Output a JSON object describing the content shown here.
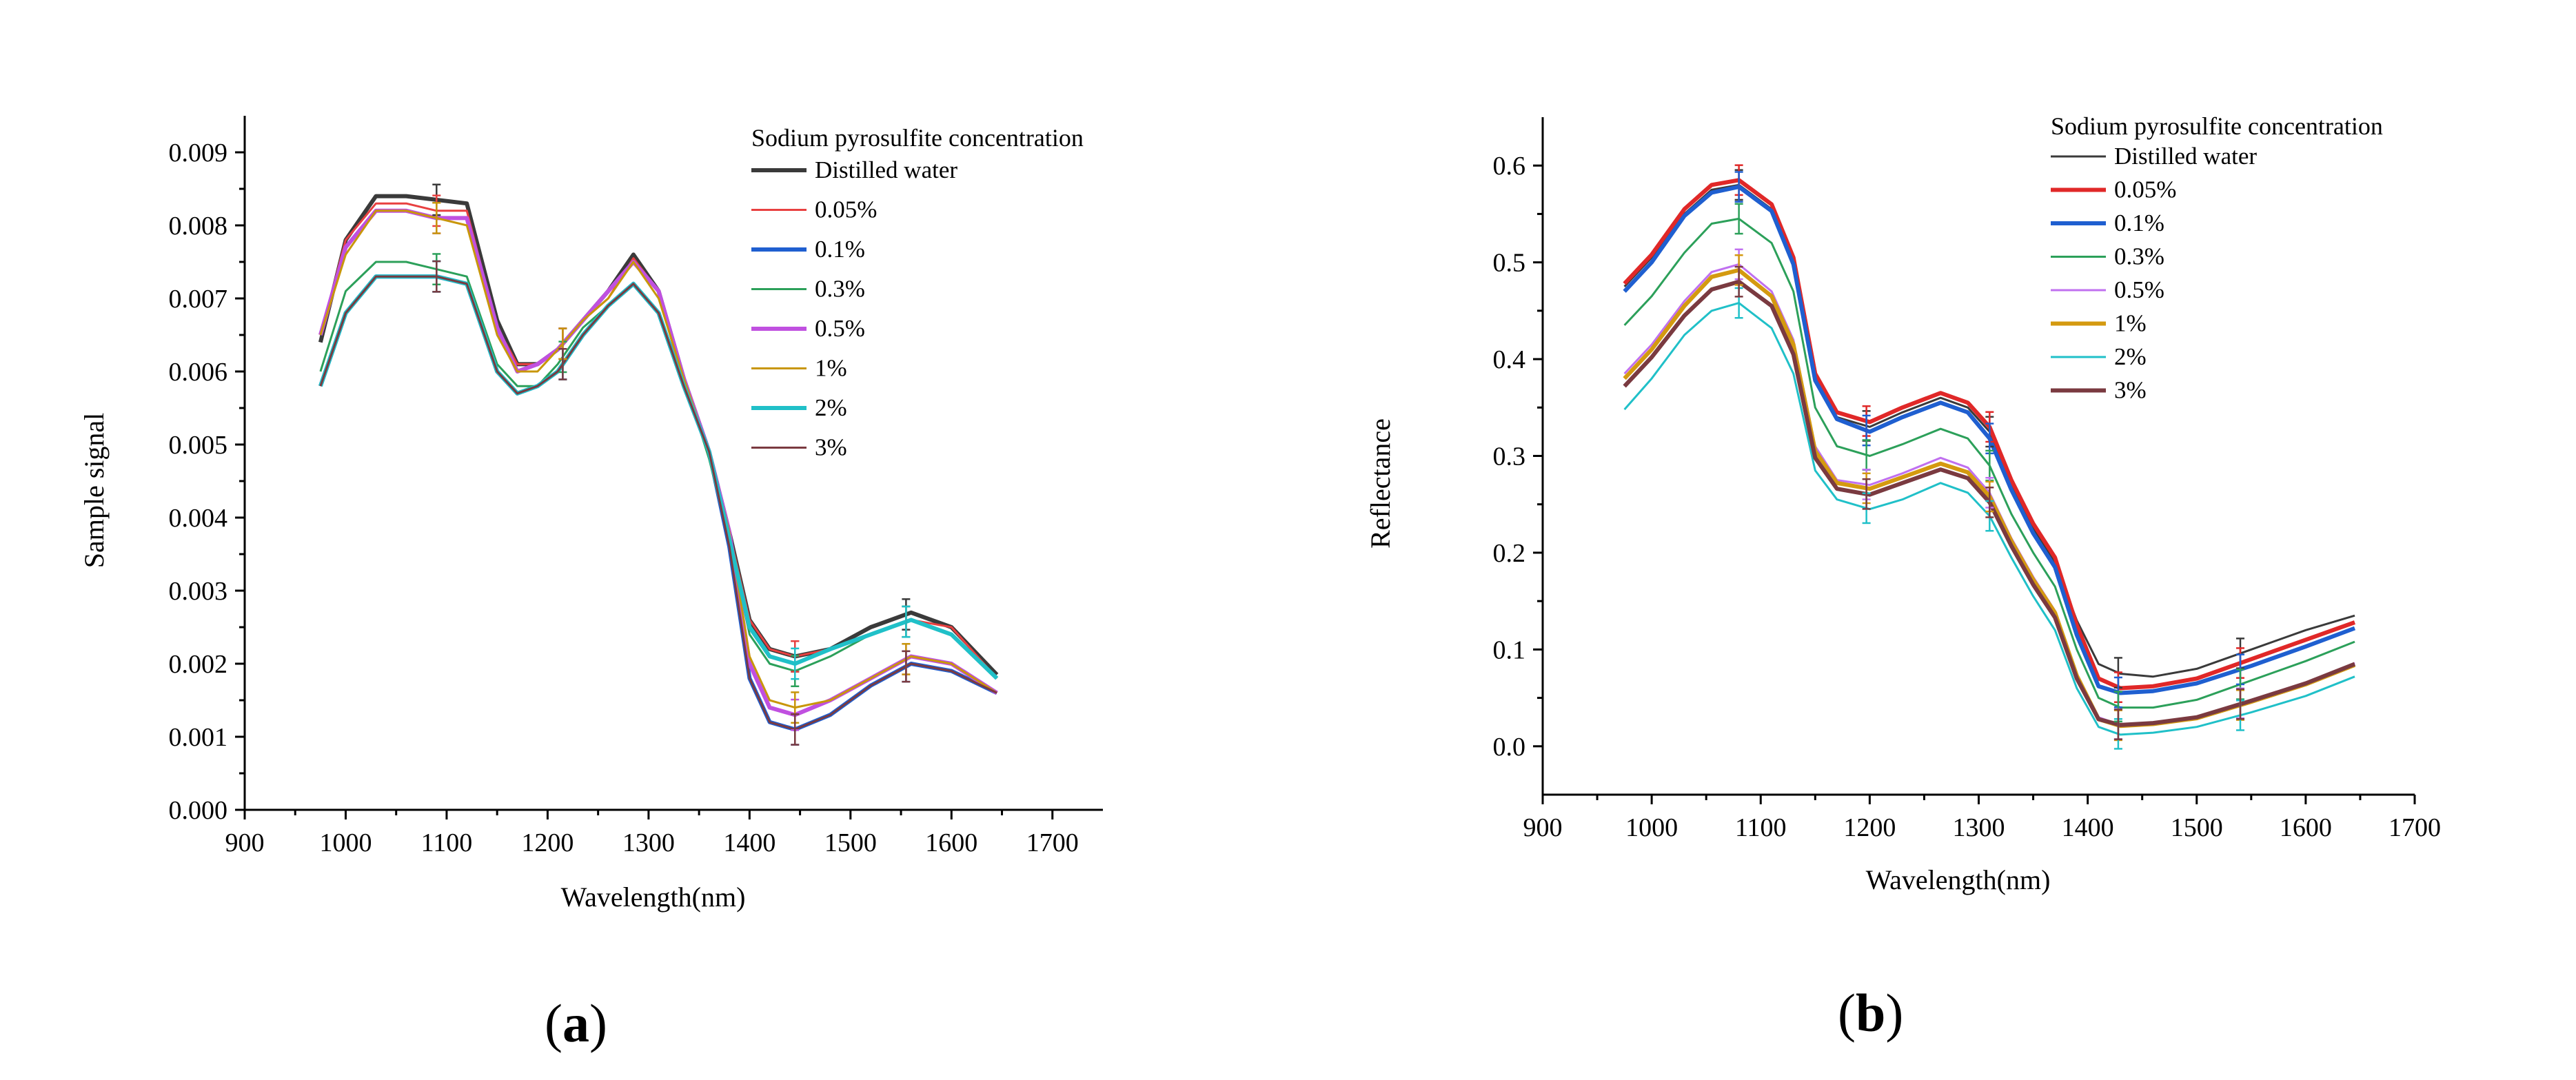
{
  "chart_data": [
    {
      "type": "line",
      "panel": "a",
      "caption_letter": "a",
      "title": "",
      "xlabel": "Wavelength(nm)",
      "ylabel": "Sample signal",
      "xlim": [
        900,
        1750
      ],
      "ylim": [
        0,
        0.0095
      ],
      "x_ticks": [
        900,
        1000,
        1100,
        1200,
        1300,
        1400,
        1500,
        1600,
        1700
      ],
      "y_ticks": [
        0.0,
        0.001,
        0.002,
        0.003,
        0.004,
        0.005,
        0.006,
        0.007,
        0.008,
        0.009
      ],
      "y_tick_labels": [
        "0.000",
        "0.001",
        "0.002",
        "0.003",
        "0.004",
        "0.005",
        "0.006",
        "0.007",
        "0.008",
        "0.009"
      ],
      "x": [
        975,
        1000,
        1030,
        1060,
        1090,
        1120,
        1150,
        1170,
        1190,
        1210,
        1235,
        1260,
        1285,
        1310,
        1335,
        1360,
        1380,
        1400,
        1420,
        1445,
        1480,
        1520,
        1560,
        1600,
        1645
      ],
      "legend_title": "Sodium pyrosulfite concentration",
      "legend_position": "top-right",
      "error_bar_x": [
        1090,
        1215,
        1445,
        1555
      ],
      "series": [
        {
          "name": "Distilled water",
          "color": "#3a3a3a",
          "width": 6,
          "values": [
            0.0064,
            0.0078,
            0.0084,
            0.0084,
            0.00835,
            0.0083,
            0.0067,
            0.0061,
            0.0061,
            0.0063,
            0.0067,
            0.0071,
            0.0076,
            0.0071,
            0.0059,
            0.0049,
            0.0038,
            0.0026,
            0.0022,
            0.0021,
            0.0022,
            0.0025,
            0.0027,
            0.0025,
            0.00185
          ]
        },
        {
          "name": "0.05%",
          "color": "#e84040",
          "width": 3,
          "values": [
            0.0065,
            0.0078,
            0.0083,
            0.0083,
            0.0082,
            0.0082,
            0.0066,
            0.0061,
            0.0061,
            0.0063,
            0.0067,
            0.007,
            0.00755,
            0.0071,
            0.0059,
            0.0049,
            0.0038,
            0.0026,
            0.0022,
            0.0021,
            0.0022,
            0.0024,
            0.0026,
            0.0025,
            0.0018
          ]
        },
        {
          "name": "0.1%",
          "color": "#1f5fd0",
          "width": 6,
          "values": [
            0.0058,
            0.0068,
            0.0073,
            0.0073,
            0.0073,
            0.0072,
            0.006,
            0.0057,
            0.0058,
            0.006,
            0.0065,
            0.0069,
            0.0072,
            0.0068,
            0.0058,
            0.0049,
            0.0036,
            0.0018,
            0.0012,
            0.0011,
            0.0013,
            0.0017,
            0.002,
            0.0019,
            0.0016
          ]
        },
        {
          "name": "0.3%",
          "color": "#2ca05a",
          "width": 3,
          "values": [
            0.006,
            0.0071,
            0.0075,
            0.0075,
            0.0074,
            0.0073,
            0.0061,
            0.0058,
            0.0058,
            0.0061,
            0.0066,
            0.0069,
            0.0072,
            0.0068,
            0.0059,
            0.0048,
            0.0037,
            0.0024,
            0.002,
            0.0019,
            0.0021,
            0.0024,
            0.0026,
            0.0024,
            0.0018
          ]
        },
        {
          "name": "0.5%",
          "color": "#c050e0",
          "width": 6,
          "values": [
            0.0065,
            0.0077,
            0.0082,
            0.0082,
            0.0081,
            0.0081,
            0.0066,
            0.006,
            0.0061,
            0.0063,
            0.0067,
            0.0071,
            0.0075,
            0.0071,
            0.0059,
            0.0049,
            0.0038,
            0.002,
            0.0014,
            0.0013,
            0.0015,
            0.0018,
            0.0021,
            0.002,
            0.0016
          ]
        },
        {
          "name": "1%",
          "color": "#c8960a",
          "width": 3,
          "values": [
            0.0065,
            0.0076,
            0.0082,
            0.0082,
            0.0081,
            0.008,
            0.0065,
            0.006,
            0.006,
            0.0063,
            0.0067,
            0.007,
            0.0075,
            0.007,
            0.0059,
            0.0049,
            0.0038,
            0.0021,
            0.0015,
            0.0014,
            0.0015,
            0.0018,
            0.0021,
            0.002,
            0.0016
          ]
        },
        {
          "name": "2%",
          "color": "#20c0c8",
          "width": 6,
          "values": [
            0.0058,
            0.0068,
            0.0073,
            0.0073,
            0.0073,
            0.0072,
            0.006,
            0.0057,
            0.0058,
            0.006,
            0.0065,
            0.0069,
            0.0072,
            0.0068,
            0.0058,
            0.0049,
            0.0037,
            0.0025,
            0.0021,
            0.002,
            0.0022,
            0.0024,
            0.0026,
            0.0024,
            0.0018
          ]
        },
        {
          "name": "3%",
          "color": "#7a3a40",
          "width": 3,
          "values": [
            0.0058,
            0.0068,
            0.0073,
            0.0073,
            0.0073,
            0.0072,
            0.006,
            0.0057,
            0.0058,
            0.006,
            0.0065,
            0.0069,
            0.0072,
            0.0068,
            0.0058,
            0.0049,
            0.0036,
            0.0018,
            0.0012,
            0.0011,
            0.0013,
            0.0017,
            0.002,
            0.0019,
            0.0016
          ]
        }
      ]
    },
    {
      "type": "line",
      "panel": "b",
      "caption_letter": "b",
      "title": "",
      "xlabel": "Wavelength(nm)",
      "ylabel": "Reflectance",
      "xlim": [
        900,
        1700
      ],
      "ylim": [
        -0.05,
        0.65
      ],
      "x_ticks": [
        900,
        1000,
        1100,
        1200,
        1300,
        1400,
        1500,
        1600,
        1700
      ],
      "y_ticks": [
        0.0,
        0.1,
        0.2,
        0.3,
        0.4,
        0.5,
        0.6
      ],
      "y_tick_labels": [
        "0.0",
        "0.1",
        "0.2",
        "0.3",
        "0.4",
        "0.5",
        "0.6"
      ],
      "x": [
        975,
        1000,
        1030,
        1055,
        1080,
        1110,
        1130,
        1150,
        1170,
        1200,
        1230,
        1265,
        1290,
        1310,
        1330,
        1350,
        1370,
        1390,
        1410,
        1430,
        1460,
        1500,
        1550,
        1600,
        1645
      ],
      "legend_title": "Sodium pyrosulfite concentration",
      "legend_position": "top-right",
      "error_bar_x": [
        1080,
        1197,
        1310,
        1428,
        1540
      ],
      "series": [
        {
          "name": "Distilled water",
          "color": "#3a3a3a",
          "width": 3,
          "values": [
            0.475,
            0.505,
            0.55,
            0.575,
            0.58,
            0.555,
            0.5,
            0.38,
            0.34,
            0.33,
            0.345,
            0.36,
            0.35,
            0.325,
            0.27,
            0.225,
            0.19,
            0.13,
            0.085,
            0.075,
            0.072,
            0.08,
            0.1,
            0.12,
            0.135
          ]
        },
        {
          "name": "0.05%",
          "color": "#e02828",
          "width": 6,
          "values": [
            0.478,
            0.508,
            0.555,
            0.58,
            0.585,
            0.56,
            0.505,
            0.385,
            0.345,
            0.335,
            0.35,
            0.365,
            0.355,
            0.33,
            0.275,
            0.23,
            0.195,
            0.125,
            0.07,
            0.06,
            0.062,
            0.07,
            0.09,
            0.11,
            0.128
          ]
        },
        {
          "name": "0.1%",
          "color": "#1f5fd0",
          "width": 6,
          "values": [
            0.47,
            0.5,
            0.548,
            0.572,
            0.578,
            0.553,
            0.498,
            0.378,
            0.338,
            0.325,
            0.34,
            0.355,
            0.345,
            0.318,
            0.265,
            0.22,
            0.185,
            0.115,
            0.062,
            0.055,
            0.057,
            0.065,
            0.083,
            0.103,
            0.122
          ]
        },
        {
          "name": "0.3%",
          "color": "#2ca05a",
          "width": 3,
          "values": [
            0.435,
            0.465,
            0.51,
            0.54,
            0.545,
            0.52,
            0.47,
            0.35,
            0.31,
            0.3,
            0.312,
            0.328,
            0.318,
            0.29,
            0.24,
            0.2,
            0.165,
            0.1,
            0.05,
            0.04,
            0.04,
            0.048,
            0.068,
            0.088,
            0.108
          ]
        },
        {
          "name": "0.5%",
          "color": "#c070f0",
          "width": 3,
          "values": [
            0.385,
            0.415,
            0.46,
            0.49,
            0.498,
            0.47,
            0.42,
            0.31,
            0.275,
            0.27,
            0.282,
            0.298,
            0.288,
            0.262,
            0.215,
            0.175,
            0.14,
            0.075,
            0.03,
            0.022,
            0.024,
            0.03,
            0.048,
            0.066,
            0.086
          ]
        },
        {
          "name": "1%",
          "color": "#d49a10",
          "width": 6,
          "values": [
            0.38,
            0.41,
            0.455,
            0.485,
            0.492,
            0.465,
            0.415,
            0.305,
            0.272,
            0.266,
            0.278,
            0.292,
            0.283,
            0.258,
            0.212,
            0.172,
            0.138,
            0.073,
            0.028,
            0.021,
            0.023,
            0.029,
            0.046,
            0.064,
            0.084
          ]
        },
        {
          "name": "2%",
          "color": "#20c0c8",
          "width": 3,
          "values": [
            0.348,
            0.38,
            0.425,
            0.45,
            0.458,
            0.432,
            0.385,
            0.285,
            0.255,
            0.245,
            0.255,
            0.272,
            0.262,
            0.238,
            0.195,
            0.155,
            0.12,
            0.06,
            0.02,
            0.012,
            0.014,
            0.02,
            0.035,
            0.052,
            0.072
          ]
        },
        {
          "name": "3%",
          "color": "#7a3a40",
          "width": 6,
          "values": [
            0.372,
            0.402,
            0.445,
            0.472,
            0.48,
            0.455,
            0.405,
            0.298,
            0.266,
            0.26,
            0.272,
            0.286,
            0.277,
            0.252,
            0.207,
            0.167,
            0.133,
            0.07,
            0.028,
            0.022,
            0.024,
            0.03,
            0.047,
            0.065,
            0.085
          ]
        }
      ]
    }
  ]
}
